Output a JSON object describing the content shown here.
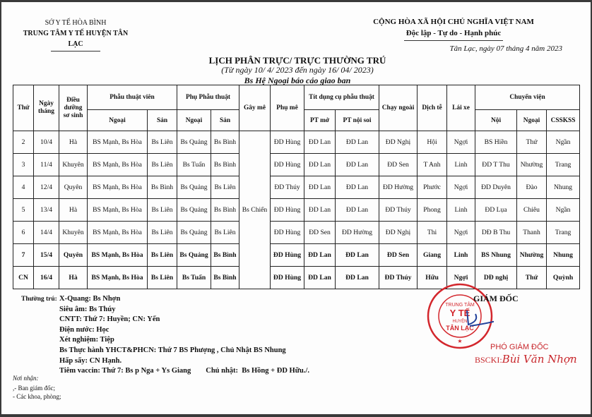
{
  "header_left": {
    "line1": "SỞ Y TẾ HÒA BÌNH",
    "line2": "TRUNG TÂM Y TẾ HUYỆN TÂN LẠC"
  },
  "header_right": {
    "line1": "CỘNG HÒA XÃ HỘI CHỦ NGHĨA VIỆT NAM",
    "line2": "Độc lập - Tự do - Hạnh phúc"
  },
  "date_line": "Tân Lạc, ngày 07 tháng 4 năm 2023",
  "title": "LỊCH PHÂN TRỰC/ TRỰC THƯỜNG TRÚ",
  "subtitle": "(Từ ngày 10/ 4/ 2023 đến ngày 16/ 04/ 2023)",
  "subtitle2": "Bs Hệ Ngoại báo cáo giao ban",
  "table": {
    "headers": {
      "thu": "Thứ",
      "ngay": "Ngày tháng",
      "dieu_duong": "Điều dưỡng sơ sinh",
      "ptv": "Phẫu thuật viên",
      "phu_pt": "Phụ Phẫu thuật",
      "gay_me": "Gây mê",
      "phu_me": "Phụ mê",
      "tit": "Tít dụng cụ phẫu thuật",
      "chay_ngoai": "Chạy ngoài",
      "dich_te": "Dịch tễ",
      "lai_xe": "Lái xe",
      "chuyen_vien": "Chuyển viện",
      "ptv_ngoai": "Ngoại",
      "ptv_san": "Sản",
      "phu_ngoai": "Ngoại",
      "phu_san": "Sản",
      "pt_mo": "PT mở",
      "pt_noi_soi": "PT nội soi",
      "cv_noi": "Nội",
      "cv_ngoai": "Ngoại",
      "cv_csskss": "CSSKSS"
    },
    "gay_me_all": "Bs Chiến",
    "rows": [
      [
        "2",
        "10/4",
        "Hà",
        "BS Mạnh, Bs Hòa",
        "Bs Liên",
        "Bs Quảng",
        "Bs Bình",
        "ĐD Hùng",
        "ĐD Lan",
        "ĐD Lan",
        "ĐD Nghị",
        "Hội",
        "Ngợi",
        "BS Hiền",
        "Thứ",
        "Ngần"
      ],
      [
        "3",
        "11/4",
        "Khuyên",
        "BS Mạnh, Bs Hòa",
        "Bs Liên",
        "Bs Tuấn",
        "Bs Bình",
        "ĐD Hùng",
        "ĐD Lan",
        "ĐD Lan",
        "ĐD Sen",
        "T Anh",
        "Linh",
        "ĐD T Thu",
        "Nhường",
        "Trang"
      ],
      [
        "4",
        "12/4",
        "Quyên",
        "BS Mạnh, Bs Hòa",
        "Bs Bình",
        "Bs Quảng",
        "Bs Liên",
        "ĐD Thúy",
        "ĐD Lan",
        "ĐD Lan",
        "ĐD Hường",
        "Phước",
        "Ngợi",
        "ĐD Duyên",
        "Đào",
        "Nhung"
      ],
      [
        "5",
        "13/4",
        "Hà",
        "BS Mạnh, Bs Hòa",
        "Bs Liên",
        "Bs Quảng",
        "Bs Bình",
        "ĐD Hùng",
        "ĐD Lan",
        "ĐD Lan",
        "ĐD Thúy",
        "Phong",
        "Linh",
        "ĐD Lụa",
        "Chiêu",
        "Ngần"
      ],
      [
        "6",
        "14/4",
        "Khuyên",
        "BS Mạnh, Bs Hòa",
        "Bs Liên",
        "Bs Quảng",
        "Bs Liên",
        "ĐD Hùng",
        "ĐD Sen",
        "ĐD Hường",
        "ĐD Nghị",
        "Thi",
        "Ngợi",
        "DĐ B Thu",
        "Thanh",
        "Trang"
      ],
      [
        "7",
        "15/4",
        "Quyên",
        "BS Mạnh, Bs Hòa",
        "Bs Liên",
        "Bs Quảng",
        "Bs Bình",
        "ĐD Hùng",
        "ĐD Lan",
        "ĐD Lan",
        "ĐD Sen",
        "Giang",
        "Linh",
        "BS Nhung",
        "Nhường",
        "Nhung"
      ],
      [
        "CN",
        "16/4",
        "Hà",
        "BS Mạnh, Bs Hòa",
        "Bs Liên",
        "Bs Tuấn",
        "Bs Bình",
        "ĐD Hùng",
        "ĐD Lan",
        "ĐD Lan",
        "ĐD Thúy",
        "Hữu",
        "Ngợi",
        "DĐ nghị",
        "Thứ",
        "Quỳnh"
      ]
    ]
  },
  "notes": {
    "label": "Thường trú:",
    "lines": [
      "X-Quang: Bs Nhợn",
      "Siêu âm: Bs Thúy",
      "CNTT: Thứ 7: Huyền; CN: Yến",
      "Điện nước: Học",
      "Xét nghiệm: Tiệp",
      "Bs Thực hành YHCT&PHCN: Thứ 7 BS Phượng , Chủ Nhật BS Nhung",
      "Hấp sấy: CN Hạnh.",
      "Tiêm vaccin: Thứ 7: Bs p Nga + Ys Giang        Chủ nhật:  Bs Hồng + ĐD Hữu./."
    ]
  },
  "recipients": {
    "label": "Nơi nhận:",
    "lines": [
      ",- Ban giám đốc;",
      "- Các khoa, phòng;"
    ]
  },
  "signature": {
    "title": "GIÁM ĐỐC",
    "deputy": "PHÓ GIÁM ĐỐC",
    "prefix": "BSCKI:",
    "name": "Bùi Văn Nhợn",
    "stamp_text": [
      "TRUNG TÂM",
      "Y TẾ",
      "HUYỆN",
      "TÂN LẠC"
    ],
    "stamp_color": "#d3262c"
  }
}
